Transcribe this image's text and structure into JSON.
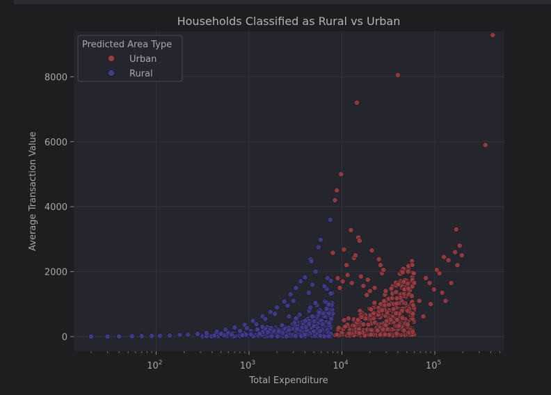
{
  "chart_data": {
    "type": "scatter",
    "title": "Households Classified as Rural vs Urban",
    "xlabel": "Total Expenditure",
    "ylabel": "Average Transaction Value",
    "xscale": "log",
    "xlim": [
      13,
      560000
    ],
    "ylim": [
      -450,
      9400
    ],
    "x_ticks": [
      {
        "value": 100,
        "base": "10",
        "exp": "2"
      },
      {
        "value": 1000,
        "base": "10",
        "exp": "3"
      },
      {
        "value": 10000,
        "base": "10",
        "exp": "4"
      },
      {
        "value": 100000,
        "base": "10",
        "exp": "5"
      }
    ],
    "y_ticks": [
      0,
      2000,
      4000,
      6000,
      8000
    ],
    "grid": true,
    "legend": {
      "title": "Predicted Area Type",
      "position": "top-left"
    },
    "series": [
      {
        "name": "Urban",
        "color": "#9a3d42",
        "points": [
          [
            8000,
            2580
          ],
          [
            8400,
            4200
          ],
          [
            8800,
            4500
          ],
          [
            9800,
            5000
          ],
          [
            10500,
            2680
          ],
          [
            11200,
            2200
          ],
          [
            12500,
            3280
          ],
          [
            13500,
            2420
          ],
          [
            14000,
            2500
          ],
          [
            14500,
            7200
          ],
          [
            15000,
            3050
          ],
          [
            15500,
            2950
          ],
          [
            17000,
            1560
          ],
          [
            18500,
            1280
          ],
          [
            21000,
            2650
          ],
          [
            22500,
            1500
          ],
          [
            25000,
            2380
          ],
          [
            26000,
            2200
          ],
          [
            27000,
            1950
          ],
          [
            28000,
            2050
          ],
          [
            40000,
            8050
          ],
          [
            45000,
            1980
          ],
          [
            52000,
            1480
          ],
          [
            60000,
            1650
          ],
          [
            68000,
            1100
          ],
          [
            80000,
            1800
          ],
          [
            88000,
            1650
          ],
          [
            98000,
            1450
          ],
          [
            105000,
            2050
          ],
          [
            112000,
            1950
          ],
          [
            125000,
            2450
          ],
          [
            140000,
            2350
          ],
          [
            150000,
            1650
          ],
          [
            165000,
            2600
          ],
          [
            170000,
            3300
          ],
          [
            175000,
            2200
          ],
          [
            185000,
            2800
          ],
          [
            195000,
            2500
          ],
          [
            350000,
            5900
          ],
          [
            420000,
            9280
          ],
          [
            9000,
            1800
          ],
          [
            9500,
            1500
          ],
          [
            10200,
            1700
          ],
          [
            11500,
            1900
          ],
          [
            12800,
            1650
          ],
          [
            16000,
            1850
          ],
          [
            19000,
            1750
          ],
          [
            20000,
            1400
          ],
          [
            32000,
            980
          ],
          [
            36000,
            850
          ],
          [
            58000,
            700
          ],
          [
            75000,
            620
          ],
          [
            90000,
            1000
          ],
          [
            120000,
            1350
          ],
          [
            130000,
            1100
          ]
        ]
      },
      {
        "name": "Rural",
        "color": "#433c8f",
        "points": [
          [
            20,
            0
          ],
          [
            30,
            0
          ],
          [
            40,
            5
          ],
          [
            55,
            10
          ],
          [
            70,
            15
          ],
          [
            90,
            20
          ],
          [
            110,
            25
          ],
          [
            140,
            35
          ],
          [
            180,
            50
          ],
          [
            220,
            60
          ],
          [
            280,
            80
          ],
          [
            350,
            110
          ],
          [
            450,
            150
          ],
          [
            560,
            210
          ],
          [
            700,
            280
          ],
          [
            900,
            360
          ],
          [
            1100,
            480
          ],
          [
            1400,
            620
          ],
          [
            1700,
            760
          ],
          [
            2000,
            900
          ],
          [
            2400,
            1080
          ],
          [
            2800,
            1300
          ],
          [
            3200,
            1500
          ],
          [
            3600,
            1700
          ],
          [
            4000,
            1820
          ],
          [
            4400,
            1350
          ],
          [
            4800,
            1600
          ],
          [
            5200,
            2000
          ],
          [
            5600,
            2750
          ],
          [
            5900,
            2980
          ],
          [
            7500,
            3600
          ],
          [
            7000,
            1800
          ],
          [
            7600,
            1720
          ],
          [
            6500,
            1550
          ],
          [
            4600,
            2380
          ],
          [
            4700,
            2320
          ],
          [
            3000,
            1100
          ],
          [
            2600,
            950
          ],
          [
            1900,
            700
          ],
          [
            1500,
            540
          ],
          [
            1200,
            380
          ],
          [
            950,
            260
          ],
          [
            800,
            180
          ],
          [
            600,
            120
          ],
          [
            500,
            90
          ],
          [
            650,
            60
          ],
          [
            850,
            40
          ],
          [
            1050,
            70
          ],
          [
            1300,
            90
          ],
          [
            1600,
            130
          ],
          [
            2100,
            160
          ],
          [
            2700,
            200
          ],
          [
            3300,
            240
          ],
          [
            4100,
            290
          ],
          [
            5000,
            320
          ],
          [
            6200,
            380
          ],
          [
            7300,
            420
          ]
        ]
      }
    ],
    "dense_regions": [
      {
        "series": "Rural",
        "x_range": [
          300,
          8000
        ],
        "y_floor": 10,
        "y_scale": 0.18,
        "y_jitter": 0.6,
        "count": 420
      },
      {
        "series": "Urban",
        "x_range": [
          8000,
          60000
        ],
        "y_floor": 40,
        "y_scale": 0.04,
        "y_jitter": 0.55,
        "count": 520
      }
    ]
  }
}
